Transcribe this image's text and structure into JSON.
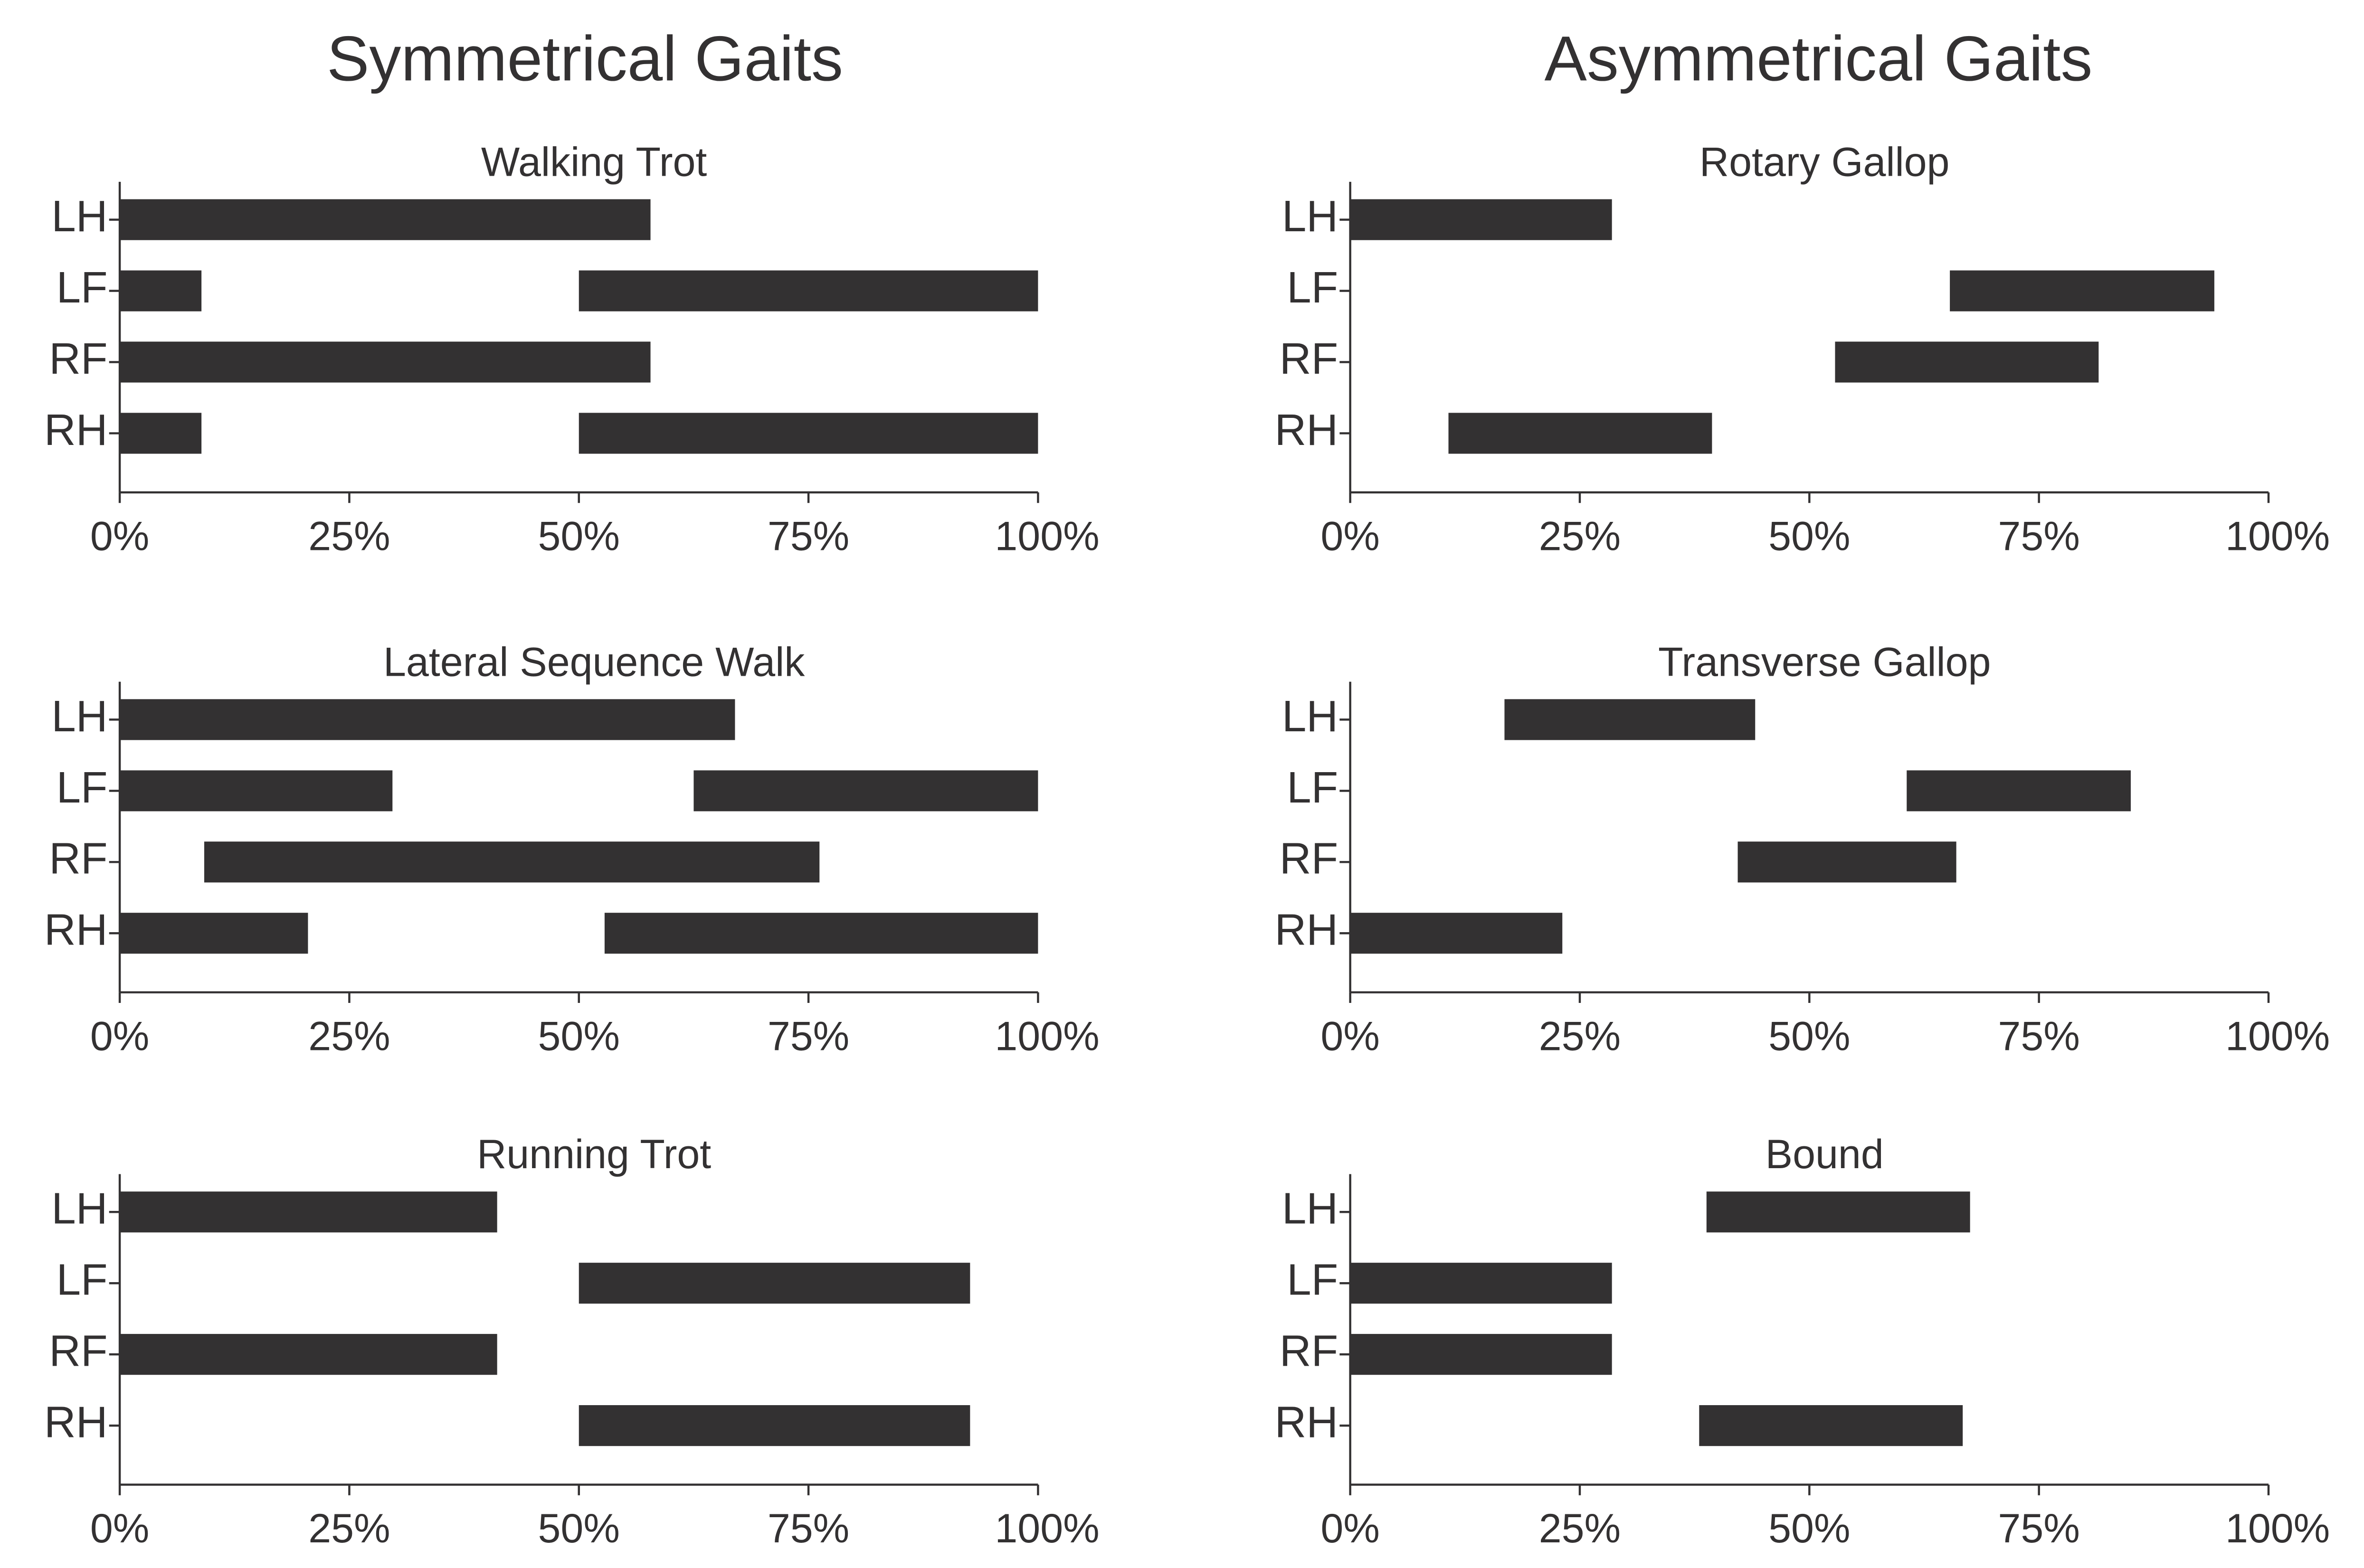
{
  "column_titles": [
    "Symmetrical Gaits",
    "Asymmetrical Gaits"
  ],
  "chart_data": [
    {
      "type": "broken_barh",
      "title": "Walking Trot",
      "categories": [
        "LH",
        "LF",
        "RF",
        "RH"
      ],
      "segments": [
        [
          [
            0,
            57.8
          ]
        ],
        [
          [
            0,
            8.9
          ],
          [
            50,
            100
          ]
        ],
        [
          [
            0,
            57.8
          ]
        ],
        [
          [
            0,
            8.9
          ],
          [
            50,
            100
          ]
        ]
      ],
      "xlim": [
        0,
        100
      ],
      "xticks": [
        {
          "value": 0,
          "label": "0%"
        },
        {
          "value": 25,
          "label": "25%"
        },
        {
          "value": 50,
          "label": "50%"
        },
        {
          "value": 75,
          "label": "75%"
        },
        {
          "value": 100,
          "label": "100%"
        }
      ],
      "color": "#333132"
    },
    {
      "type": "broken_barh",
      "title": "Rotary Gallop",
      "categories": [
        "LH",
        "LF",
        "RF",
        "RH"
      ],
      "segments": [
        [
          [
            0,
            28.5
          ]
        ],
        [
          [
            65.3,
            94.1
          ]
        ],
        [
          [
            52.8,
            81.5
          ]
        ],
        [
          [
            10.7,
            39.4
          ]
        ]
      ],
      "xlim": [
        0,
        100
      ],
      "xticks": [
        {
          "value": 0,
          "label": "0%"
        },
        {
          "value": 25,
          "label": "25%"
        },
        {
          "value": 50,
          "label": "50%"
        },
        {
          "value": 75,
          "label": "75%"
        },
        {
          "value": 100,
          "label": "100%"
        }
      ],
      "color": "#333132"
    },
    {
      "type": "broken_barh",
      "title": "Lateral Sequence Walk",
      "categories": [
        "LH",
        "LF",
        "RF",
        "RH"
      ],
      "segments": [
        [
          [
            0,
            67
          ]
        ],
        [
          [
            0,
            29.7
          ],
          [
            62.5,
            100
          ]
        ],
        [
          [
            9.2,
            76.2
          ]
        ],
        [
          [
            0,
            20.5
          ],
          [
            52.8,
            100
          ]
        ]
      ],
      "xlim": [
        0,
        100
      ],
      "xticks": [
        {
          "value": 0,
          "label": "0%"
        },
        {
          "value": 25,
          "label": "25%"
        },
        {
          "value": 50,
          "label": "50%"
        },
        {
          "value": 75,
          "label": "75%"
        },
        {
          "value": 100,
          "label": "100%"
        }
      ],
      "color": "#333132"
    },
    {
      "type": "broken_barh",
      "title": "Transverse Gallop",
      "categories": [
        "LH",
        "LF",
        "RF",
        "RH"
      ],
      "segments": [
        [
          [
            16.8,
            44.1
          ]
        ],
        [
          [
            60.6,
            85
          ]
        ],
        [
          [
            42.2,
            66
          ]
        ],
        [
          [
            0,
            23.1
          ]
        ]
      ],
      "xlim": [
        0,
        100
      ],
      "xticks": [
        {
          "value": 0,
          "label": "0%"
        },
        {
          "value": 25,
          "label": "25%"
        },
        {
          "value": 50,
          "label": "50%"
        },
        {
          "value": 75,
          "label": "75%"
        },
        {
          "value": 100,
          "label": "100%"
        }
      ],
      "color": "#333132"
    },
    {
      "type": "broken_barh",
      "title": "Running Trot",
      "categories": [
        "LH",
        "LF",
        "RF",
        "RH"
      ],
      "segments": [
        [
          [
            0,
            41.1
          ]
        ],
        [
          [
            50,
            92.6
          ]
        ],
        [
          [
            0,
            41.1
          ]
        ],
        [
          [
            50,
            92.6
          ]
        ]
      ],
      "xlim": [
        0,
        100
      ],
      "xticks": [
        {
          "value": 0,
          "label": "0%"
        },
        {
          "value": 25,
          "label": "25%"
        },
        {
          "value": 50,
          "label": "50%"
        },
        {
          "value": 75,
          "label": "75%"
        },
        {
          "value": 100,
          "label": "100%"
        }
      ],
      "color": "#333132"
    },
    {
      "type": "broken_barh",
      "title": "Bound",
      "categories": [
        "LH",
        "LF",
        "RF",
        "RH"
      ],
      "segments": [
        [
          [
            38.8,
            67.5
          ]
        ],
        [
          [
            0,
            28.5
          ]
        ],
        [
          [
            0,
            28.5
          ]
        ],
        [
          [
            38,
            66.7
          ]
        ]
      ],
      "xlim": [
        0,
        100
      ],
      "xticks": [
        {
          "value": 0,
          "label": "0%"
        },
        {
          "value": 25,
          "label": "25%"
        },
        {
          "value": 50,
          "label": "50%"
        },
        {
          "value": 75,
          "label": "75%"
        },
        {
          "value": 100,
          "label": "100%"
        }
      ],
      "color": "#333132"
    }
  ]
}
